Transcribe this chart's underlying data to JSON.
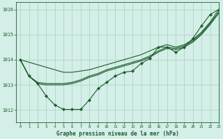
{
  "title": "Graphe pression niveau de la mer (hPa)",
  "bg_color": "#d4eee8",
  "grid_color": "#aacfbf",
  "line_color": "#1a5c28",
  "xlim": [
    -0.5,
    23
  ],
  "ylim": [
    1011.5,
    1016.3
  ],
  "yticks": [
    1012,
    1013,
    1014,
    1015,
    1016
  ],
  "xticks": [
    0,
    1,
    2,
    3,
    4,
    5,
    6,
    7,
    8,
    9,
    10,
    11,
    12,
    13,
    14,
    15,
    16,
    17,
    18,
    19,
    20,
    21,
    22,
    23
  ],
  "smooth_line1": [
    1014.0,
    1013.35,
    1013.05,
    1013.0,
    1013.0,
    1013.0,
    1013.05,
    1013.15,
    1013.3,
    1013.4,
    1013.55,
    1013.65,
    1013.75,
    1013.85,
    1013.95,
    1014.1,
    1014.3,
    1014.45,
    1014.4,
    1014.5,
    1014.7,
    1015.0,
    1015.4,
    1015.85
  ],
  "smooth_line2": [
    1014.0,
    1013.35,
    1013.1,
    1013.05,
    1013.05,
    1013.05,
    1013.1,
    1013.2,
    1013.35,
    1013.45,
    1013.6,
    1013.7,
    1013.8,
    1013.9,
    1014.0,
    1014.15,
    1014.35,
    1014.5,
    1014.45,
    1014.55,
    1014.75,
    1015.05,
    1015.45,
    1015.9
  ],
  "linear_trend": [
    1014.0,
    1013.9,
    1013.8,
    1013.7,
    1013.6,
    1013.5,
    1013.5,
    1013.55,
    1013.6,
    1013.7,
    1013.8,
    1013.9,
    1014.0,
    1014.1,
    1014.2,
    1014.35,
    1014.5,
    1014.6,
    1014.5,
    1014.6,
    1014.8,
    1015.1,
    1015.5,
    1016.0
  ],
  "marker_line": [
    1014.0,
    1013.35,
    1013.05,
    1012.55,
    1012.2,
    1012.02,
    1012.02,
    1012.02,
    1012.4,
    1012.85,
    1013.1,
    1013.35,
    1013.5,
    1013.55,
    1013.85,
    1014.05,
    1014.5,
    1014.5,
    1014.3,
    1014.5,
    1014.85,
    1015.35,
    1015.8,
    1016.0
  ]
}
